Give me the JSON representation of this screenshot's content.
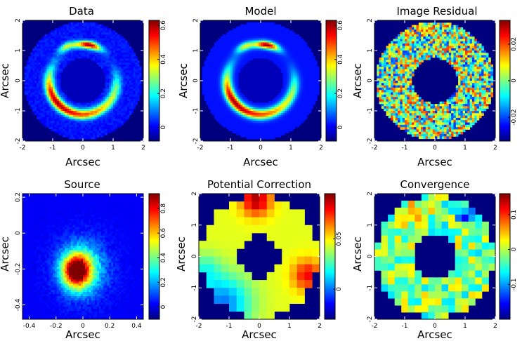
{
  "figure": {
    "description_none": ""
  },
  "colormap": [
    "#00007f",
    "#0000ff",
    "#007fff",
    "#00ffff",
    "#7fff7f",
    "#ffff00",
    "#ff7f00",
    "#ff0000",
    "#7f0000"
  ],
  "chart_data": [
    {
      "type": "heatmap",
      "title": "Data",
      "xlabel": "Arcsec",
      "ylabel": "Arcsec",
      "xlim": [
        -2,
        2
      ],
      "ylim": [
        -2,
        2
      ],
      "xticks": [
        "-2",
        "-1",
        "0",
        "1",
        "2"
      ],
      "yticks": [
        "-2",
        "-1",
        "0",
        "1",
        "2"
      ],
      "colorbar": {
        "range": [
          -0.08,
          0.63
        ],
        "ticks": [
          "0",
          "0.2",
          "0.4",
          "0.6"
        ]
      },
      "content": "lensed arc ring, bright lower-left arc and upper-right arc"
    },
    {
      "type": "heatmap",
      "title": "Model",
      "xlabel": "Arcsec",
      "ylabel": "Arcsec",
      "xlim": [
        -2,
        2
      ],
      "ylim": [
        -2,
        2
      ],
      "xticks": [
        "-2",
        "-1",
        "0",
        "1",
        "2"
      ],
      "yticks": [
        "-2",
        "-1",
        "0",
        "1",
        "2"
      ],
      "colorbar": {
        "range": [
          -0.08,
          0.63
        ],
        "ticks": [
          "0",
          "0.2",
          "0.4",
          "0.6"
        ]
      },
      "content": "model lensed arc ring"
    },
    {
      "type": "heatmap",
      "title": "Image Residual",
      "xlabel": "Arcsec",
      "ylabel": "Arcsec",
      "xlim": [
        -2,
        2
      ],
      "ylim": [
        -2,
        2
      ],
      "xticks": [
        "-2",
        "-1",
        "0",
        "1",
        "2"
      ],
      "yticks": [
        "-2",
        "-1",
        "0",
        "1",
        "2"
      ],
      "colorbar": {
        "range": [
          -0.033,
          0.033
        ],
        "ticks": [
          "-0.02",
          "0",
          "0.02"
        ]
      },
      "content": "noise-like residual annulus"
    },
    {
      "type": "heatmap",
      "title": "Source",
      "xlabel": "Arcsec",
      "ylabel": "Arcsec",
      "xlim": [
        -0.45,
        0.45
      ],
      "ylim": [
        -0.48,
        0.22
      ],
      "xticks": [
        "-0.4",
        "-0.2",
        "0",
        "0.2",
        "0.4"
      ],
      "yticks": [
        "-0.4",
        "-0.2",
        "0",
        "0.2"
      ],
      "colorbar": {
        "range": [
          -0.1,
          0.92
        ],
        "ticks": [
          "0",
          "0.2",
          "0.4",
          "0.6",
          "0.8"
        ]
      },
      "content": "reconstructed source blob near (-0.05,-0.22)"
    },
    {
      "type": "heatmap",
      "title": "Potential Correction",
      "xlabel": "Arcsec",
      "ylabel": "Arcsec",
      "xlim": [
        -2,
        2
      ],
      "ylim": [
        -2,
        2
      ],
      "xticks": [
        "-2",
        "-1",
        "0",
        "1",
        "2"
      ],
      "yticks": [
        "-2",
        "-1",
        "0",
        "1",
        "2"
      ],
      "colorbar": {
        "range": [
          -0.03,
          0.095
        ],
        "ticks": [
          "0",
          "0.05"
        ]
      },
      "content": "smooth gradient correction on coarse annulus grid"
    },
    {
      "type": "heatmap",
      "title": "Convergence",
      "xlabel": "Arcsec",
      "ylabel": "Arcsec",
      "xlim": [
        -2,
        2
      ],
      "ylim": [
        -2,
        2
      ],
      "xticks": [
        "-2",
        "-1",
        "0",
        "1",
        "2"
      ],
      "yticks": [
        "-2",
        "-1",
        "0",
        "1",
        "2"
      ],
      "colorbar": {
        "range": [
          -0.2,
          0.16
        ],
        "ticks": [
          "-0.1",
          "0",
          "0.1"
        ]
      },
      "content": "convergence correction on coarse annulus grid"
    }
  ]
}
